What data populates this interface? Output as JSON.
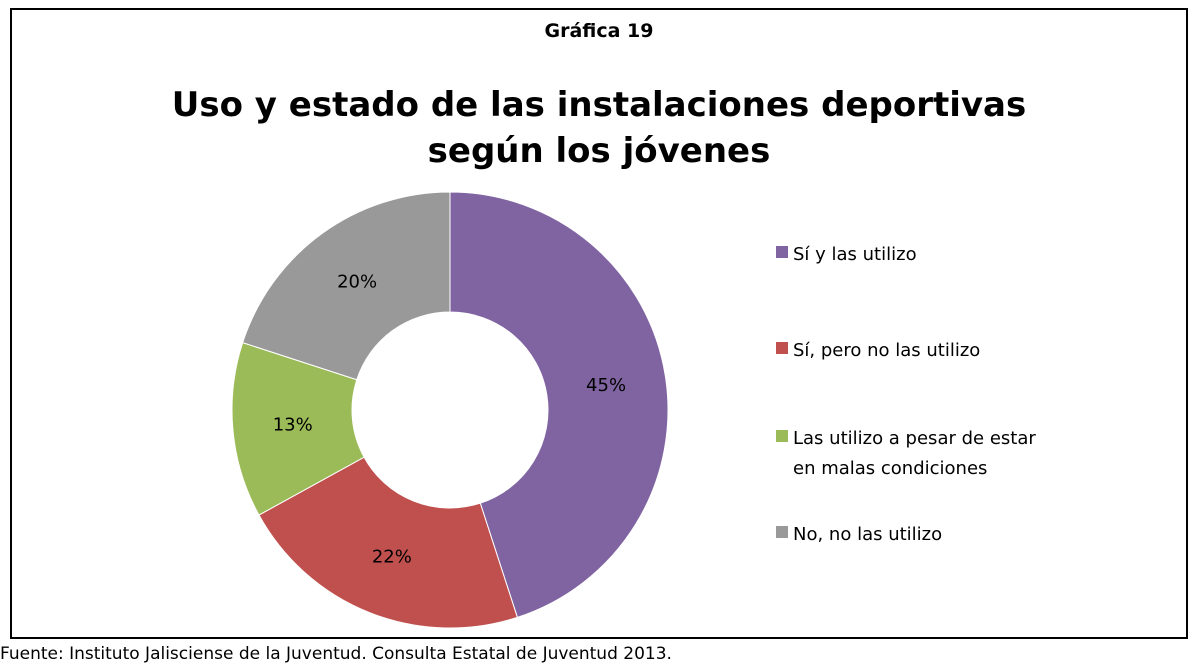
{
  "kicker": "Gráfica 19",
  "title_line1": "Uso y estado de las instalaciones deportivas",
  "title_line2": "según los jóvenes",
  "source": "Fuente: Instituto Jalisciense de la Juventud. Consulta Estatal de Juventud 2013.",
  "chart_data": {
    "type": "pie",
    "hole": true,
    "title": "Uso y estado de las instalaciones deportivas según los jóvenes",
    "categories": [
      "Sí y las utilizo",
      "Sí, pero no las utilizo",
      "Las utilizo a pesar de estar en malas condiciones",
      "No, no las utilizo"
    ],
    "legend_lines": [
      [
        "Sí y las utilizo"
      ],
      [
        "Sí, pero no las utilizo"
      ],
      [
        "Las utilizo a pesar de estar",
        "en malas condiciones"
      ],
      [
        "No, no las utilizo"
      ]
    ],
    "values": [
      45,
      22,
      13,
      20
    ],
    "data_labels": [
      "45%",
      "22%",
      "13%",
      "20%"
    ],
    "colors": [
      "#8064A2",
      "#C0504D",
      "#9BBB59",
      "#999999"
    ],
    "legend_position": "right"
  }
}
